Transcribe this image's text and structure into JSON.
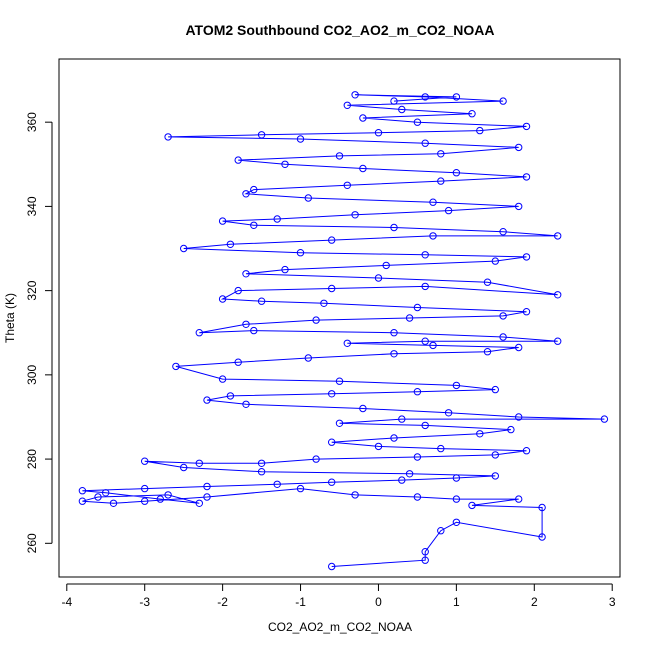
{
  "chart_data": {
    "type": "scatter",
    "title": "ATOM2 Southbound CO2_AO2_m_CO2_NOAA",
    "xlabel": "CO2_AO2_m_CO2_NOAA",
    "ylabel": "Theta (K)",
    "xlim": [
      -4.1,
      3.1
    ],
    "ylim": [
      252,
      375
    ],
    "x_ticks": [
      -4,
      -3,
      -2,
      -1,
      0,
      1,
      2,
      3
    ],
    "x_tick_labels": [
      "-4",
      "-3",
      "-2",
      "-1",
      "0",
      "1",
      "2",
      "3"
    ],
    "y_ticks": [
      260,
      280,
      300,
      320,
      340,
      360
    ],
    "y_tick_labels": [
      "260",
      "280",
      "300",
      "320",
      "340",
      "360"
    ],
    "grid": false,
    "legend": "none",
    "colors": {
      "series": "#0000ff",
      "axes": "#000000",
      "background": "#ffffff"
    },
    "series": [
      {
        "marker": "open-circle",
        "connected": true,
        "points": [
          [
            -0.6,
            254.5
          ],
          [
            0.6,
            256
          ],
          [
            0.6,
            258
          ],
          [
            0.8,
            263
          ],
          [
            1.0,
            265
          ],
          [
            2.1,
            261.5
          ],
          [
            2.1,
            268.5
          ],
          [
            1.2,
            269
          ],
          [
            1.8,
            270.5
          ],
          [
            1.0,
            270.5
          ],
          [
            0.5,
            271
          ],
          [
            -0.3,
            271.5
          ],
          [
            -1.0,
            273
          ],
          [
            -2.2,
            271
          ],
          [
            -3.0,
            270
          ],
          [
            -3.4,
            269.5
          ],
          [
            -3.8,
            270
          ],
          [
            -3.6,
            271
          ],
          [
            -2.7,
            271.5
          ],
          [
            -2.3,
            269.5
          ],
          [
            -2.8,
            270.5
          ],
          [
            -3.5,
            272
          ],
          [
            -3.8,
            272.5
          ],
          [
            -3.0,
            273
          ],
          [
            -2.2,
            273.5
          ],
          [
            -1.3,
            274
          ],
          [
            -0.6,
            274.5
          ],
          [
            0.3,
            275
          ],
          [
            1.0,
            275.5
          ],
          [
            1.5,
            276
          ],
          [
            0.4,
            276.5
          ],
          [
            -1.5,
            277
          ],
          [
            -2.5,
            278
          ],
          [
            -3.0,
            279.5
          ],
          [
            -2.3,
            279
          ],
          [
            -1.5,
            279
          ],
          [
            -0.8,
            280
          ],
          [
            0.5,
            280.5
          ],
          [
            1.5,
            281
          ],
          [
            1.9,
            282
          ],
          [
            0.8,
            282.5
          ],
          [
            0.0,
            283
          ],
          [
            -0.6,
            284
          ],
          [
            0.2,
            285
          ],
          [
            1.3,
            286
          ],
          [
            1.7,
            287
          ],
          [
            0.6,
            288
          ],
          [
            -0.5,
            288.5
          ],
          [
            0.3,
            289.5
          ],
          [
            2.9,
            289.5
          ],
          [
            1.8,
            290
          ],
          [
            0.9,
            291
          ],
          [
            -0.2,
            292
          ],
          [
            -1.7,
            293
          ],
          [
            -2.2,
            294
          ],
          [
            -1.9,
            295
          ],
          [
            -0.6,
            295.5
          ],
          [
            0.5,
            296
          ],
          [
            1.5,
            296.5
          ],
          [
            1.0,
            297.5
          ],
          [
            -0.5,
            298.5
          ],
          [
            -2.0,
            299
          ],
          [
            -2.6,
            302
          ],
          [
            -1.8,
            303
          ],
          [
            -0.9,
            304
          ],
          [
            0.2,
            305
          ],
          [
            1.4,
            305.5
          ],
          [
            1.8,
            306.5
          ],
          [
            0.7,
            307
          ],
          [
            -0.4,
            307.5
          ],
          [
            0.6,
            308
          ],
          [
            2.3,
            308
          ],
          [
            1.6,
            309
          ],
          [
            0.2,
            310
          ],
          [
            -1.6,
            310.5
          ],
          [
            -2.3,
            310
          ],
          [
            -1.7,
            312
          ],
          [
            -0.8,
            313
          ],
          [
            0.4,
            313.5
          ],
          [
            1.6,
            314
          ],
          [
            1.9,
            315
          ],
          [
            0.5,
            316
          ],
          [
            -0.7,
            317
          ],
          [
            -1.5,
            317.5
          ],
          [
            -2.0,
            318
          ],
          [
            -1.8,
            320
          ],
          [
            -0.6,
            320.5
          ],
          [
            0.6,
            321
          ],
          [
            2.3,
            319
          ],
          [
            1.4,
            322
          ],
          [
            0.0,
            323
          ],
          [
            -1.7,
            324
          ],
          [
            -1.2,
            325
          ],
          [
            0.1,
            326
          ],
          [
            1.5,
            327
          ],
          [
            1.9,
            328
          ],
          [
            0.6,
            328.5
          ],
          [
            -1.0,
            329
          ],
          [
            -2.5,
            330
          ],
          [
            -1.9,
            331
          ],
          [
            -0.6,
            332
          ],
          [
            0.7,
            333
          ],
          [
            2.3,
            333
          ],
          [
            1.6,
            334
          ],
          [
            0.2,
            335
          ],
          [
            -1.6,
            335.5
          ],
          [
            -2.0,
            336.5
          ],
          [
            -1.3,
            337
          ],
          [
            -0.3,
            338
          ],
          [
            0.9,
            339
          ],
          [
            1.8,
            340
          ],
          [
            0.7,
            341
          ],
          [
            -0.9,
            342
          ],
          [
            -1.7,
            343
          ],
          [
            -1.6,
            344
          ],
          [
            -0.4,
            345
          ],
          [
            0.8,
            346
          ],
          [
            1.9,
            347
          ],
          [
            1.0,
            348
          ],
          [
            -0.2,
            349
          ],
          [
            -1.2,
            350
          ],
          [
            -1.8,
            351
          ],
          [
            -0.5,
            352
          ],
          [
            0.8,
            352.5
          ],
          [
            1.8,
            354
          ],
          [
            0.6,
            355
          ],
          [
            -1.0,
            356
          ],
          [
            -2.7,
            356.5
          ],
          [
            -1.5,
            357
          ],
          [
            0.0,
            357.5
          ],
          [
            1.3,
            358
          ],
          [
            1.9,
            359
          ],
          [
            0.5,
            360
          ],
          [
            -0.2,
            361
          ],
          [
            1.2,
            362
          ],
          [
            0.3,
            363
          ],
          [
            -0.4,
            364
          ],
          [
            1.6,
            365
          ],
          [
            0.6,
            366
          ],
          [
            -0.3,
            366.5
          ],
          [
            1.0,
            366
          ],
          [
            0.2,
            365
          ]
        ]
      }
    ]
  }
}
